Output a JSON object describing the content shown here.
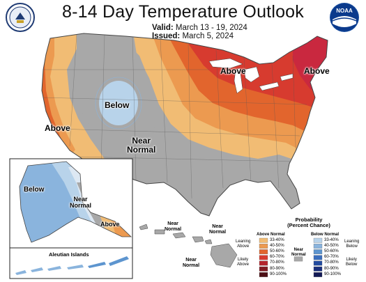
{
  "title": "8-14 Day Temperature Outlook",
  "valid": {
    "label": "Valid:",
    "value": "March 13 - 19, 2024"
  },
  "issued": {
    "label": "Issued:",
    "value": "March 5, 2024"
  },
  "logos": {
    "left": "commerce-seal-icon",
    "right": "noaa-logo-icon",
    "right_text": "NOAA"
  },
  "map_labels": {
    "above_great_lakes": "Above",
    "above_northeast": "Above",
    "below_rockies": "Below",
    "near_normal_southwest_1": "Near",
    "near_normal_southwest_2": "Normal",
    "above_west_coast": "Above",
    "alaska_below": "Below",
    "alaska_near_1": "Near",
    "alaska_near_2": "Normal",
    "alaska_above": "Above",
    "aleutian": "Aleutian Islands",
    "hawaii_near_a_1": "Near",
    "hawaii_near_a_2": "Normal",
    "hawaii_near_b_1": "Near",
    "hawaii_near_b_2": "Normal",
    "hawaii_near_c_1": "Near",
    "hawaii_near_c_2": "Normal"
  },
  "legend": {
    "title_1": "Probability",
    "title_2": "(Percent Chance)",
    "above_header": "Above Normal",
    "below_header": "Below Normal",
    "near_label_1": "Near",
    "near_label_2": "Normal",
    "leaning_above_1": "Leaning",
    "leaning_above_2": "Above",
    "likely_above_1": "Likely",
    "likely_above_2": "Above",
    "leaning_below_1": "Leaning",
    "leaning_below_2": "Below",
    "likely_below_1": "Likely",
    "likely_below_2": "Below",
    "above_bins": [
      "33-40%",
      "40-50%",
      "50-60%",
      "60-70%",
      "70-80%",
      "80-90%",
      "90-100%"
    ],
    "below_bins": [
      "33-40%",
      "40-50%",
      "50-60%",
      "60-70%",
      "70-80%",
      "80-90%",
      "90-100%"
    ],
    "above_colors": [
      "#f1bc74",
      "#ec9a50",
      "#e2652d",
      "#d73b2f",
      "#b3242d",
      "#801a22",
      "#4d0f15"
    ],
    "below_colors": [
      "#b8d3ea",
      "#8ab4dd",
      "#5d95cf",
      "#3a6ebd",
      "#234b9e",
      "#1a2f7c",
      "#121955"
    ],
    "near_color": "#a8a8a8"
  }
}
